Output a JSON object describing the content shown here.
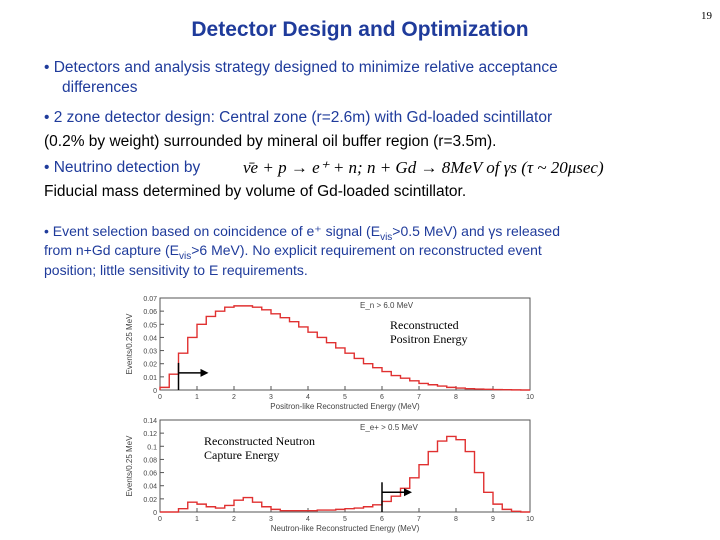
{
  "page_number": "19",
  "title": "Detector Design and Optimization",
  "bullets": {
    "b1_line1": "• Detectors and analysis strategy designed to minimize relative acceptance",
    "b1_line2": "differences",
    "b2_line1": "• 2 zone detector design: Central zone (r=2.6m) with Gd-loaded scintillator",
    "b2_line2": "(0.2% by weight) surrounded by mineral oil buffer region (r=3.5m).",
    "b3_prefix": "• Neutrino detection by",
    "b3_eq_left": "ν̄e + p → e⁺ + n;  n + Gd → 8MeV of γs (τ ~ 20μsec)",
    "b4": "Fiducial mass determined by volume of Gd-loaded scintillator."
  },
  "selection": {
    "line1_a": "•  Event selection based on coincidence of e⁺ signal (E",
    "line1_sub": "vis",
    "line1_b": ">0.5 MeV) and γs released",
    "line2_a": "from n+Gd capture (E",
    "line2_sub": "vis",
    "line2_b": ">6 MeV).  No explicit requirement on reconstructed event",
    "line3": "position; little sensitivity  to E requirements."
  },
  "chart_data": [
    {
      "type": "line",
      "ylabel": "Events/0.25 MeV",
      "xlabel": "Positron-like Reconstructed Energy (MeV)",
      "cut_label": "E_n > 6.0 MeV",
      "caption_line1": "Reconstructed",
      "caption_line2": "Positron Energy",
      "xlim": [
        0,
        10
      ],
      "ylim": [
        0,
        0.07
      ],
      "x_ticks": [
        "0",
        "1",
        "2",
        "3",
        "4",
        "5",
        "6",
        "7",
        "8",
        "9",
        "10"
      ],
      "y_ticks": [
        "0",
        "0.01",
        "0.02",
        "0.03",
        "0.04",
        "0.05",
        "0.06",
        "0.07"
      ],
      "cut_value": 0.5,
      "x": [
        0,
        0.25,
        0.5,
        0.75,
        1.0,
        1.25,
        1.5,
        1.75,
        2.0,
        2.25,
        2.5,
        2.75,
        3.0,
        3.25,
        3.5,
        3.75,
        4.0,
        4.25,
        4.5,
        4.75,
        5.0,
        5.25,
        5.5,
        5.75,
        6.0,
        6.25,
        6.5,
        6.75,
        7.0,
        7.25,
        7.5,
        7.75,
        8.0,
        8.25,
        8.5,
        8.75,
        9.0,
        9.25,
        9.5,
        9.75
      ],
      "values": [
        0.002,
        0.012,
        0.028,
        0.04,
        0.05,
        0.056,
        0.06,
        0.063,
        0.064,
        0.064,
        0.063,
        0.061,
        0.058,
        0.055,
        0.052,
        0.048,
        0.044,
        0.04,
        0.036,
        0.032,
        0.028,
        0.024,
        0.02,
        0.017,
        0.014,
        0.011,
        0.009,
        0.007,
        0.005,
        0.004,
        0.003,
        0.002,
        0.0015,
        0.001,
        0.0007,
        0.0005,
        0.0003,
        0.0002,
        0.0001,
        0.0
      ]
    },
    {
      "type": "line",
      "ylabel": "Events/0.25 MeV",
      "xlabel": "Neutron-like Reconstructed Energy (MeV)",
      "cut_label": "E_e+ > 0.5 MeV",
      "caption_line1": "Reconstructed Neutron",
      "caption_line2": "Capture Energy",
      "xlim": [
        0,
        10
      ],
      "ylim": [
        0,
        0.14
      ],
      "x_ticks": [
        "0",
        "1",
        "2",
        "3",
        "4",
        "5",
        "6",
        "7",
        "8",
        "9",
        "10"
      ],
      "y_ticks": [
        "0",
        "0.02",
        "0.04",
        "0.06",
        "0.08",
        "0.1",
        "0.12",
        "0.14"
      ],
      "cut_value": 6.0,
      "x": [
        0,
        0.25,
        0.5,
        0.75,
        1.0,
        1.25,
        1.5,
        1.75,
        2.0,
        2.25,
        2.5,
        2.75,
        3.0,
        3.25,
        3.5,
        3.75,
        4.0,
        4.25,
        4.5,
        4.75,
        5.0,
        5.25,
        5.5,
        5.75,
        6.0,
        6.25,
        6.5,
        6.75,
        7.0,
        7.25,
        7.5,
        7.75,
        8.0,
        8.25,
        8.5,
        8.75,
        9.0,
        9.25,
        9.5,
        9.75
      ],
      "values": [
        0.0,
        0.0,
        0.005,
        0.015,
        0.012,
        0.008,
        0.006,
        0.01,
        0.018,
        0.022,
        0.015,
        0.008,
        0.004,
        0.002,
        0.002,
        0.002,
        0.002,
        0.003,
        0.003,
        0.004,
        0.005,
        0.006,
        0.008,
        0.011,
        0.016,
        0.024,
        0.036,
        0.052,
        0.072,
        0.092,
        0.108,
        0.115,
        0.11,
        0.092,
        0.06,
        0.03,
        0.012,
        0.004,
        0.001,
        0.0
      ]
    }
  ]
}
